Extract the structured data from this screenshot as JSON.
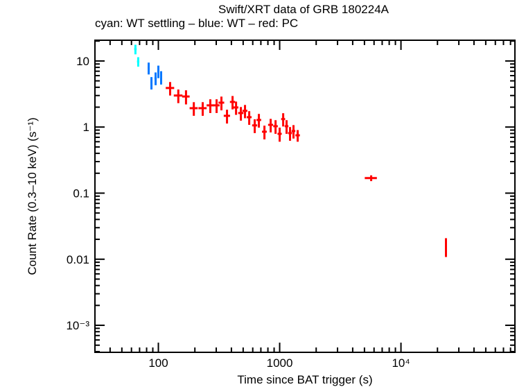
{
  "chart_data": {
    "type": "scatter",
    "title": "Swift/XRT data of GRB 180224A",
    "subtitle": "cyan: WT settling – blue: WT – red: PC",
    "xlabel": "Time since BAT trigger (s)",
    "ylabel": "Count Rate (0.3–10 keV) (s⁻¹)",
    "xscale": "log",
    "yscale": "log",
    "xlim": [
      30,
      87000
    ],
    "ylim": [
      0.00039,
      20.6
    ],
    "grid": false,
    "xticks": [
      {
        "value": 100,
        "label": "100"
      },
      {
        "value": 1000,
        "label": "1000"
      },
      {
        "value": 10000,
        "label": "10⁴"
      }
    ],
    "yticks": [
      {
        "value": 10,
        "label": "10"
      },
      {
        "value": 1,
        "label": "1"
      },
      {
        "value": 0.1,
        "label": "0.1"
      },
      {
        "value": 0.01,
        "label": "0.01"
      },
      {
        "value": 0.001,
        "label": "10⁻³"
      }
    ],
    "series": [
      {
        "color": "#00ffff",
        "points": [
          [
            64.7,
            15.1,
            1.5,
            2.5
          ],
          [
            68.2,
            9.8,
            1.5,
            1.6
          ]
        ]
      },
      {
        "color": "#0077ff",
        "points": [
          [
            83.2,
            7.85,
            1.5,
            1.6
          ],
          [
            87.7,
            4.7,
            1.5,
            1.0
          ],
          [
            94.9,
            5.5,
            2.0,
            1.2
          ],
          [
            100,
            7.0,
            2.0,
            1.5
          ],
          [
            105.4,
            5.7,
            2.0,
            1.3
          ]
        ]
      },
      {
        "color": "#ff0000",
        "points": [
          [
            125,
            3.9,
            10,
            0.9
          ],
          [
            146,
            3.0,
            12,
            0.7
          ],
          [
            169,
            2.9,
            12,
            0.7
          ],
          [
            196,
            1.93,
            15,
            0.45
          ],
          [
            232,
            1.93,
            18,
            0.45
          ],
          [
            268,
            2.13,
            18,
            0.5
          ],
          [
            302,
            2.13,
            18,
            0.5
          ],
          [
            331,
            2.34,
            18,
            0.55
          ],
          [
            368,
            1.48,
            22,
            0.35
          ],
          [
            409,
            2.4,
            20,
            0.55
          ],
          [
            437,
            1.98,
            20,
            0.45
          ],
          [
            479,
            1.63,
            24,
            0.38
          ],
          [
            518,
            1.76,
            24,
            0.4
          ],
          [
            561,
            1.41,
            26,
            0.33
          ],
          [
            623,
            1.06,
            30,
            0.25
          ],
          [
            674,
            1.28,
            30,
            0.3
          ],
          [
            749,
            0.85,
            34,
            0.2
          ],
          [
            843,
            1.08,
            40,
            0.25
          ],
          [
            925,
            1.03,
            40,
            0.24
          ],
          [
            1000,
            0.79,
            40,
            0.19
          ],
          [
            1069,
            1.32,
            40,
            0.3
          ],
          [
            1140,
            1.03,
            40,
            0.24
          ],
          [
            1218,
            0.81,
            45,
            0.19
          ],
          [
            1300,
            0.87,
            45,
            0.2
          ],
          [
            1408,
            0.75,
            60,
            0.15
          ],
          [
            5680,
            0.169,
            650,
            0.017
          ],
          [
            23500,
            0.0158,
            300,
            0.005
          ]
        ]
      }
    ]
  }
}
